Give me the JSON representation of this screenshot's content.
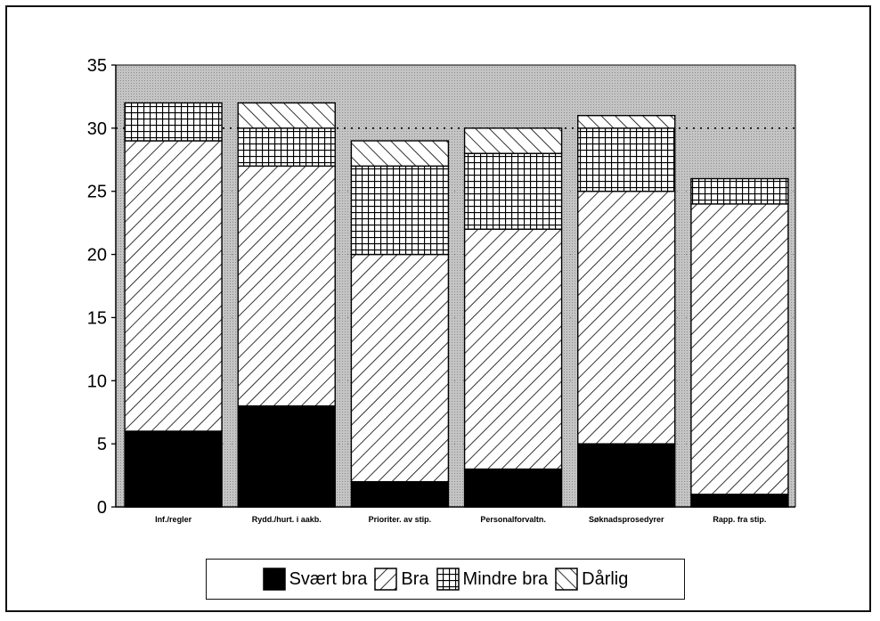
{
  "chart_data": {
    "type": "bar",
    "stacked": true,
    "categories": [
      "Inf./regler",
      "Rydd./hurt. i aakb.",
      "Prioriter. av stip.",
      "Personalforvaltn.",
      "Søknadsprosedyrer",
      "Rapp. fra stip."
    ],
    "series": [
      {
        "name": "Svært bra",
        "values": [
          6,
          8,
          2,
          3,
          5,
          1
        ],
        "pattern": "solid"
      },
      {
        "name": "Bra",
        "values": [
          23,
          19,
          18,
          19,
          20,
          23
        ],
        "pattern": "diagonal-forward"
      },
      {
        "name": "Mindre bra",
        "values": [
          3,
          3,
          7,
          6,
          5,
          2
        ],
        "pattern": "grid"
      },
      {
        "name": "Dårlig",
        "values": [
          0,
          2,
          2,
          2,
          1,
          0
        ],
        "pattern": "diagonal-back"
      }
    ],
    "ylim": [
      0,
      35
    ],
    "yticks": [
      "0",
      "5",
      "10",
      "15",
      "20",
      "25",
      "30",
      "35"
    ],
    "reference_line": 30,
    "legend_position": "bottom",
    "colors": {
      "plot_background": "#bdbdbd",
      "bar_fill": "#ffffff",
      "ink": "#000000"
    }
  }
}
